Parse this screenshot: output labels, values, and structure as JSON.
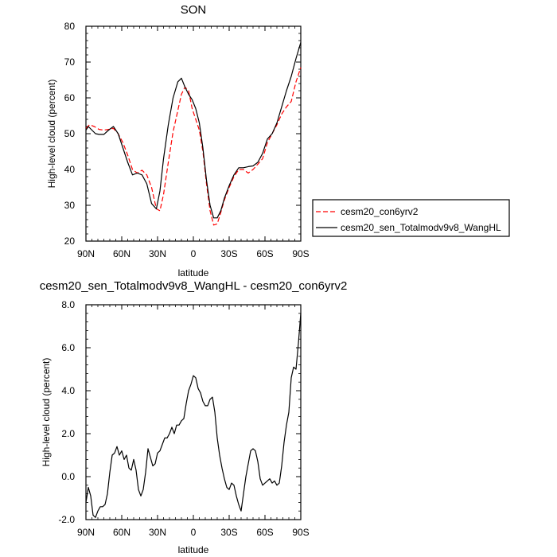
{
  "chart_data": [
    {
      "type": "line",
      "title": "SON",
      "xlabel": "latitude",
      "ylabel": "High-level cloud (percent)",
      "xlim": [
        90,
        -90
      ],
      "ylim": [
        20,
        80
      ],
      "x_ticks": [
        90,
        60,
        30,
        0,
        -30,
        -60,
        -90
      ],
      "x_tick_labels": [
        "90N",
        "60N",
        "30N",
        "0",
        "30S",
        "60S",
        "90S"
      ],
      "y_ticks": [
        20,
        30,
        40,
        50,
        60,
        70,
        80
      ],
      "y_tick_labels": [
        "20",
        "30",
        "40",
        "50",
        "60",
        "70",
        "80"
      ],
      "legend_position": "right",
      "series": [
        {
          "name": "cesm20_con6yrv2",
          "color": "#ff0000",
          "dash": "dashed",
          "x": [
            90,
            87,
            83,
            79,
            75,
            71,
            67,
            63,
            59,
            55,
            51,
            47,
            43,
            39,
            35,
            31,
            28,
            25,
            21,
            17,
            13,
            10,
            7,
            4,
            1,
            -2,
            -5,
            -8,
            -11,
            -14,
            -17,
            -20,
            -23,
            -26,
            -30,
            -34,
            -38,
            -42,
            -46,
            -50,
            -54,
            -58,
            -62,
            -66,
            -70,
            -74,
            -78,
            -82,
            -86,
            -90
          ],
          "y": [
            51.5,
            52.5,
            52.0,
            51.2,
            51.0,
            51.2,
            51.5,
            50.0,
            47.5,
            44.0,
            40.0,
            39.0,
            39.8,
            38.5,
            35.0,
            29.0,
            28.5,
            33.0,
            42.0,
            50.5,
            56.5,
            61.0,
            63.0,
            62.0,
            57.0,
            54.0,
            51.0,
            45.0,
            36.0,
            28.5,
            24.5,
            24.8,
            28.0,
            31.5,
            35.0,
            38.0,
            40.0,
            40.0,
            39.0,
            40.0,
            41.5,
            43.0,
            47.5,
            50.0,
            52.5,
            55.5,
            57.5,
            59.0,
            64.5,
            68.5
          ]
        },
        {
          "name": "cesm20_sen_Totalmodv9v8_WangHL",
          "color": "#000000",
          "dash": "solid",
          "x": [
            90,
            88,
            85,
            82,
            79,
            75,
            71,
            67,
            63,
            59,
            55,
            51,
            47,
            43,
            39,
            35,
            31,
            28,
            25,
            21,
            17,
            13,
            10,
            7,
            4,
            1,
            -2,
            -5,
            -8,
            -11,
            -14,
            -17,
            -20,
            -23,
            -26,
            -30,
            -34,
            -38,
            -42,
            -46,
            -50,
            -54,
            -58,
            -62,
            -66,
            -70,
            -74,
            -78,
            -82,
            -86,
            -90
          ],
          "y": [
            51.0,
            52.0,
            51.0,
            50.0,
            49.8,
            49.8,
            51.0,
            52.0,
            50.0,
            46.0,
            42.0,
            38.5,
            39.0,
            38.5,
            36.0,
            30.5,
            29.0,
            34.0,
            43.0,
            52.5,
            60.0,
            64.5,
            65.5,
            63.0,
            61.0,
            59.5,
            57.0,
            53.0,
            46.0,
            37.0,
            30.0,
            26.5,
            26.5,
            28.5,
            32.0,
            35.5,
            38.5,
            40.5,
            40.5,
            40.8,
            41.0,
            42.0,
            44.5,
            48.5,
            50.0,
            53.0,
            57.5,
            62.0,
            66.0,
            71.0,
            75.5
          ]
        }
      ]
    },
    {
      "type": "line",
      "title": "cesm20_sen_Totalmodv9v8_WangHL - cesm20_con6yrv2",
      "xlabel": "latitude",
      "ylabel": "High-level cloud (percent)",
      "xlim": [
        90,
        -90
      ],
      "ylim": [
        -2.0,
        8.0
      ],
      "x_ticks": [
        90,
        60,
        30,
        0,
        -30,
        -60,
        -90
      ],
      "x_tick_labels": [
        "90N",
        "60N",
        "30N",
        "0",
        "30S",
        "60S",
        "90S"
      ],
      "y_ticks": [
        -2.0,
        0.0,
        2.0,
        4.0,
        6.0,
        8.0
      ],
      "y_tick_labels": [
        "-2.0",
        "0.0",
        "2.0",
        "4.0",
        "6.0",
        "8.0"
      ],
      "series": [
        {
          "color": "#000000",
          "dash": "solid",
          "x": [
            90,
            88,
            86,
            84,
            82,
            80,
            78,
            76,
            74,
            72,
            70,
            68,
            66,
            64,
            62,
            60,
            58,
            56,
            54,
            52,
            50,
            48,
            46,
            44,
            42,
            40,
            38,
            36,
            34,
            32,
            30,
            28,
            26,
            24,
            22,
            20,
            18,
            16,
            14,
            12,
            10,
            8,
            6,
            4,
            2,
            0,
            -2,
            -4,
            -6,
            -8,
            -10,
            -12,
            -14,
            -16,
            -18,
            -20,
            -22,
            -24,
            -26,
            -28,
            -30,
            -32,
            -34,
            -36,
            -38,
            -40,
            -42,
            -44,
            -46,
            -48,
            -50,
            -52,
            -54,
            -56,
            -58,
            -60,
            -62,
            -64,
            -66,
            -68,
            -70,
            -72,
            -74,
            -76,
            -78,
            -80,
            -82,
            -84,
            -86,
            -88,
            -90
          ],
          "y": [
            -1.2,
            -0.5,
            -0.9,
            -1.8,
            -1.9,
            -1.6,
            -1.4,
            -1.4,
            -1.3,
            -0.8,
            0.2,
            1.0,
            1.1,
            1.4,
            1.0,
            1.2,
            0.8,
            1.0,
            0.4,
            0.3,
            0.8,
            0.3,
            -0.6,
            -0.9,
            -0.6,
            0.2,
            1.3,
            0.9,
            0.5,
            0.6,
            1.1,
            1.2,
            1.5,
            1.8,
            1.8,
            2.0,
            2.3,
            2.0,
            2.4,
            2.4,
            2.6,
            2.7,
            3.4,
            4.0,
            4.3,
            4.7,
            4.6,
            4.1,
            3.9,
            3.5,
            3.3,
            3.3,
            3.6,
            3.7,
            3.0,
            1.8,
            1.0,
            0.4,
            -0.1,
            -0.5,
            -0.6,
            -0.3,
            -0.4,
            -0.9,
            -1.3,
            -1.6,
            -0.8,
            0.0,
            0.6,
            1.2,
            1.3,
            1.2,
            0.7,
            -0.1,
            -0.4,
            -0.3,
            -0.2,
            -0.1,
            -0.3,
            -0.2,
            -0.4,
            -0.3,
            0.5,
            1.6,
            2.4,
            3.0,
            4.6,
            5.1,
            5.0,
            6.2,
            7.6
          ]
        }
      ]
    }
  ]
}
